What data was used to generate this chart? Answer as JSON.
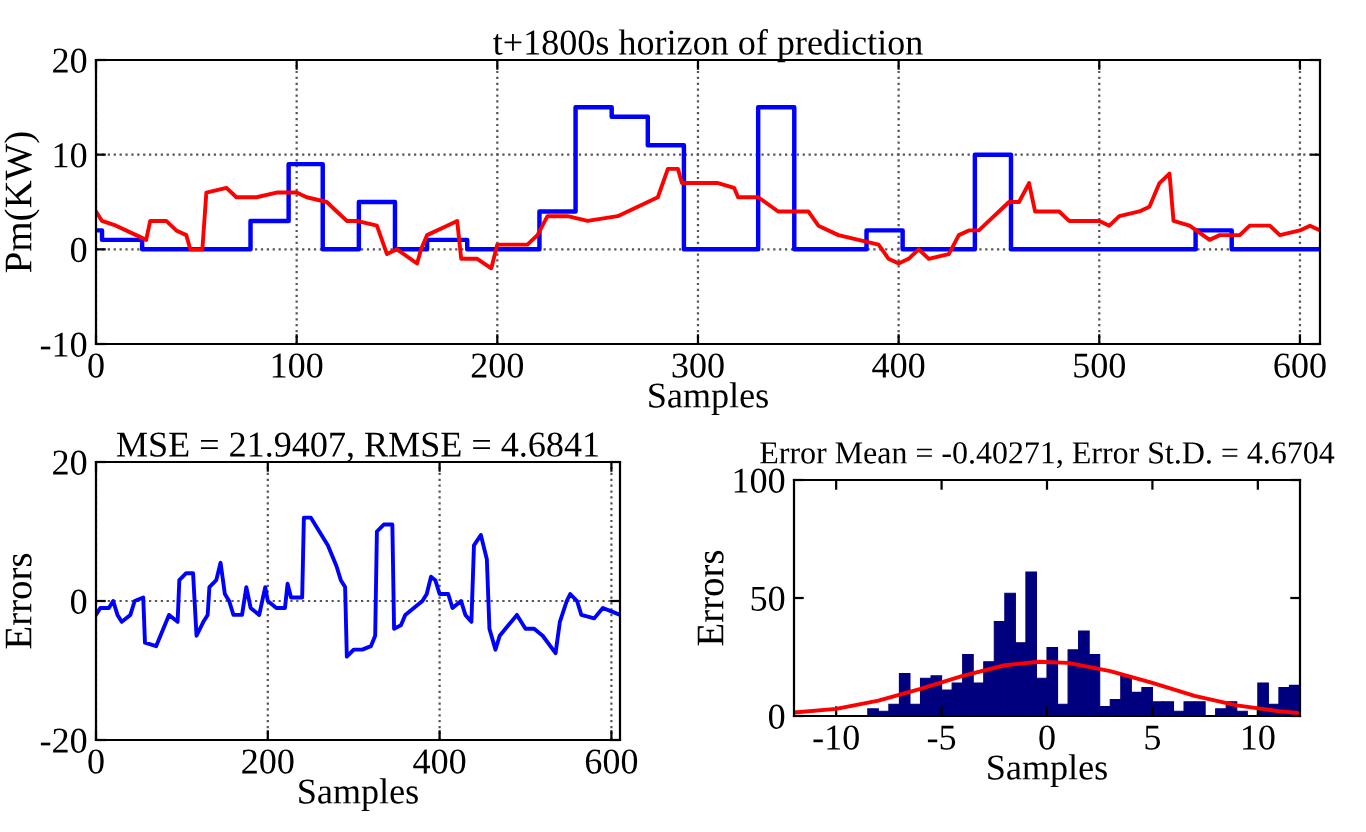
{
  "chart_data": [
    {
      "type": "line",
      "title": "t+1800s horizon of prediction",
      "xlabel": "Samples",
      "ylabel": "Pm(KW)",
      "xlim": [
        0,
        610
      ],
      "ylim": [
        -10,
        20
      ],
      "xticks": [
        0,
        100,
        200,
        300,
        400,
        500,
        600
      ],
      "yticks": [
        -10,
        0,
        10,
        20
      ],
      "grid": true,
      "series": [
        {
          "type": "step",
          "color": "#0000ff",
          "x": [
            0,
            3,
            23,
            77,
            96,
            113,
            131,
            149,
            165,
            185,
            221,
            239,
            257,
            275,
            293,
            330,
            348,
            384,
            402,
            438,
            456,
            548,
            566,
            610
          ],
          "values": [
            2,
            1,
            0,
            3,
            9,
            0,
            5,
            0,
            1,
            0,
            4,
            15,
            14,
            11,
            0,
            15,
            0,
            2,
            0,
            10,
            0,
            2,
            0,
            0
          ]
        },
        {
          "type": "line",
          "color": "#ff0000",
          "x": [
            0,
            3,
            10,
            20,
            25,
            27,
            35,
            40,
            45,
            47,
            53,
            55,
            65,
            70,
            80,
            90,
            100,
            105,
            115,
            120,
            125,
            130,
            140,
            145,
            150,
            160,
            162,
            165,
            175,
            180,
            182,
            190,
            197,
            200,
            210,
            215,
            220,
            225,
            235,
            245,
            260,
            270,
            280,
            285,
            290,
            292,
            300,
            310,
            318,
            320,
            330,
            340,
            355,
            360,
            370,
            380,
            390,
            395,
            400,
            405,
            410,
            415,
            425,
            430,
            435,
            440,
            445,
            450,
            455,
            460,
            465,
            468,
            470,
            480,
            485,
            490,
            500,
            505,
            510,
            520,
            525,
            530,
            535,
            537,
            545,
            555,
            560,
            570,
            575,
            585,
            590,
            600,
            605,
            610
          ],
          "values": [
            4,
            3,
            2.5,
            1.5,
            1,
            3,
            3,
            2,
            1.5,
            0,
            0,
            6,
            6.5,
            5.5,
            5.5,
            6,
            6,
            5.5,
            5,
            4,
            3,
            3,
            2.5,
            -0.5,
            0,
            -1.5,
            0,
            1.5,
            2.5,
            3,
            -1,
            -1,
            -2,
            0.5,
            0.5,
            0.5,
            1.5,
            3.5,
            3.5,
            3,
            3.5,
            4.5,
            5.5,
            8.5,
            8.5,
            7,
            7,
            7,
            6.5,
            5.5,
            5.5,
            4,
            4,
            2.5,
            1.5,
            1,
            0.5,
            -1,
            -1.5,
            -1,
            0,
            -1,
            -0.5,
            1.5,
            2,
            2,
            3,
            4,
            5,
            5,
            7,
            4,
            4,
            4,
            3,
            3,
            3,
            2.5,
            3.5,
            4,
            4.5,
            7,
            8,
            3,
            2.5,
            1,
            1.5,
            1.5,
            2.5,
            2.5,
            1.5,
            2,
            2.5,
            2
          ]
        }
      ]
    },
    {
      "type": "line",
      "title": "MSE = 21.9407, RMSE = 4.6841",
      "xlabel": "Samples",
      "ylabel": "Errors",
      "xlim": [
        0,
        610
      ],
      "ylim": [
        -20,
        20
      ],
      "xticks": [
        0,
        200,
        400,
        600
      ],
      "yticks": [
        -20,
        0,
        20
      ],
      "grid": true,
      "series": [
        {
          "type": "line",
          "color": "#0000ff",
          "x": [
            0,
            5,
            15,
            20,
            25,
            30,
            40,
            45,
            55,
            57,
            70,
            75,
            85,
            95,
            97,
            105,
            113,
            117,
            125,
            130,
            132,
            140,
            145,
            150,
            155,
            160,
            170,
            175,
            180,
            190,
            197,
            200,
            210,
            220,
            223,
            227,
            240,
            242,
            250,
            260,
            270,
            280,
            285,
            290,
            292,
            300,
            310,
            320,
            325,
            327,
            335,
            345,
            347,
            355,
            360,
            370,
            380,
            385,
            390,
            395,
            400,
            410,
            415,
            425,
            430,
            437,
            440,
            448,
            455,
            458,
            465,
            470,
            480,
            490,
            500,
            510,
            520,
            535,
            540,
            548,
            552,
            560,
            565,
            580,
            590,
            600,
            610
          ],
          "values": [
            -2,
            -1,
            -1,
            0,
            -2,
            -3,
            -2,
            0,
            0.5,
            -6,
            -6.5,
            -5,
            -2,
            -3,
            3,
            4,
            4,
            -5,
            -3,
            -2,
            2,
            3,
            5.5,
            1,
            0,
            -2,
            -2,
            2,
            -1,
            -2,
            2,
            0,
            -1,
            -1,
            2.5,
            0.5,
            0.5,
            12,
            12,
            10,
            8,
            5,
            3,
            2,
            -8,
            -7,
            -7,
            -6.5,
            -5,
            10,
            11,
            11,
            -4,
            -3.5,
            -2,
            -1,
            0,
            1,
            3.5,
            3,
            1,
            1,
            -1,
            0,
            -2,
            -3,
            8,
            9.5,
            6,
            -4,
            -7,
            -5,
            -3.5,
            -2,
            -4,
            -4,
            -5,
            -7.5,
            -3,
            0,
            1,
            0,
            -2,
            -2.5,
            -1,
            -1.5,
            -2
          ]
        }
      ]
    },
    {
      "type": "histogram",
      "title": "Error Mean = -0.40271, Error St.D. = 4.6704",
      "xlabel": "Samples",
      "ylabel": "Errors",
      "xlim": [
        -12,
        12
      ],
      "ylim": [
        0,
        100
      ],
      "xticks": [
        -10,
        -5,
        0,
        5,
        10
      ],
      "yticks": [
        0,
        50,
        100
      ],
      "color": "#00007f",
      "bins": [
        -9,
        -8.5,
        -8,
        -7.5,
        -7,
        -6.5,
        -6,
        -5.5,
        -5,
        -4.5,
        -4,
        -3.5,
        -3,
        -2.5,
        -2,
        -1.5,
        -1,
        -0.5,
        0,
        0.5,
        1,
        1.5,
        2,
        2.5,
        3,
        3.5,
        4,
        4.5,
        5,
        5.5,
        6,
        6.5,
        7,
        7.5,
        8,
        8.5,
        9,
        9.5,
        10,
        10.5,
        11,
        11.5,
        12
      ],
      "values": [
        0,
        3,
        2,
        5,
        18,
        5,
        16,
        17,
        11,
        14,
        26,
        14,
        23,
        40,
        52,
        31,
        61,
        16,
        29,
        5,
        28,
        36,
        26,
        4,
        7,
        17,
        10,
        12,
        6,
        6,
        2,
        6,
        6,
        0,
        3,
        6,
        2,
        0,
        14,
        5,
        12,
        13
      ],
      "series": [
        {
          "type": "line",
          "color": "#ff0000",
          "x": [
            -12,
            -10,
            -8,
            -6,
            -4,
            -2,
            -0.4,
            1,
            3,
            5,
            7,
            9,
            11,
            12
          ],
          "values": [
            1.5,
            3,
            6.5,
            11.5,
            17,
            21.5,
            23,
            22.5,
            19,
            14,
            8.5,
            4.5,
            2,
            1.2
          ]
        }
      ]
    }
  ]
}
